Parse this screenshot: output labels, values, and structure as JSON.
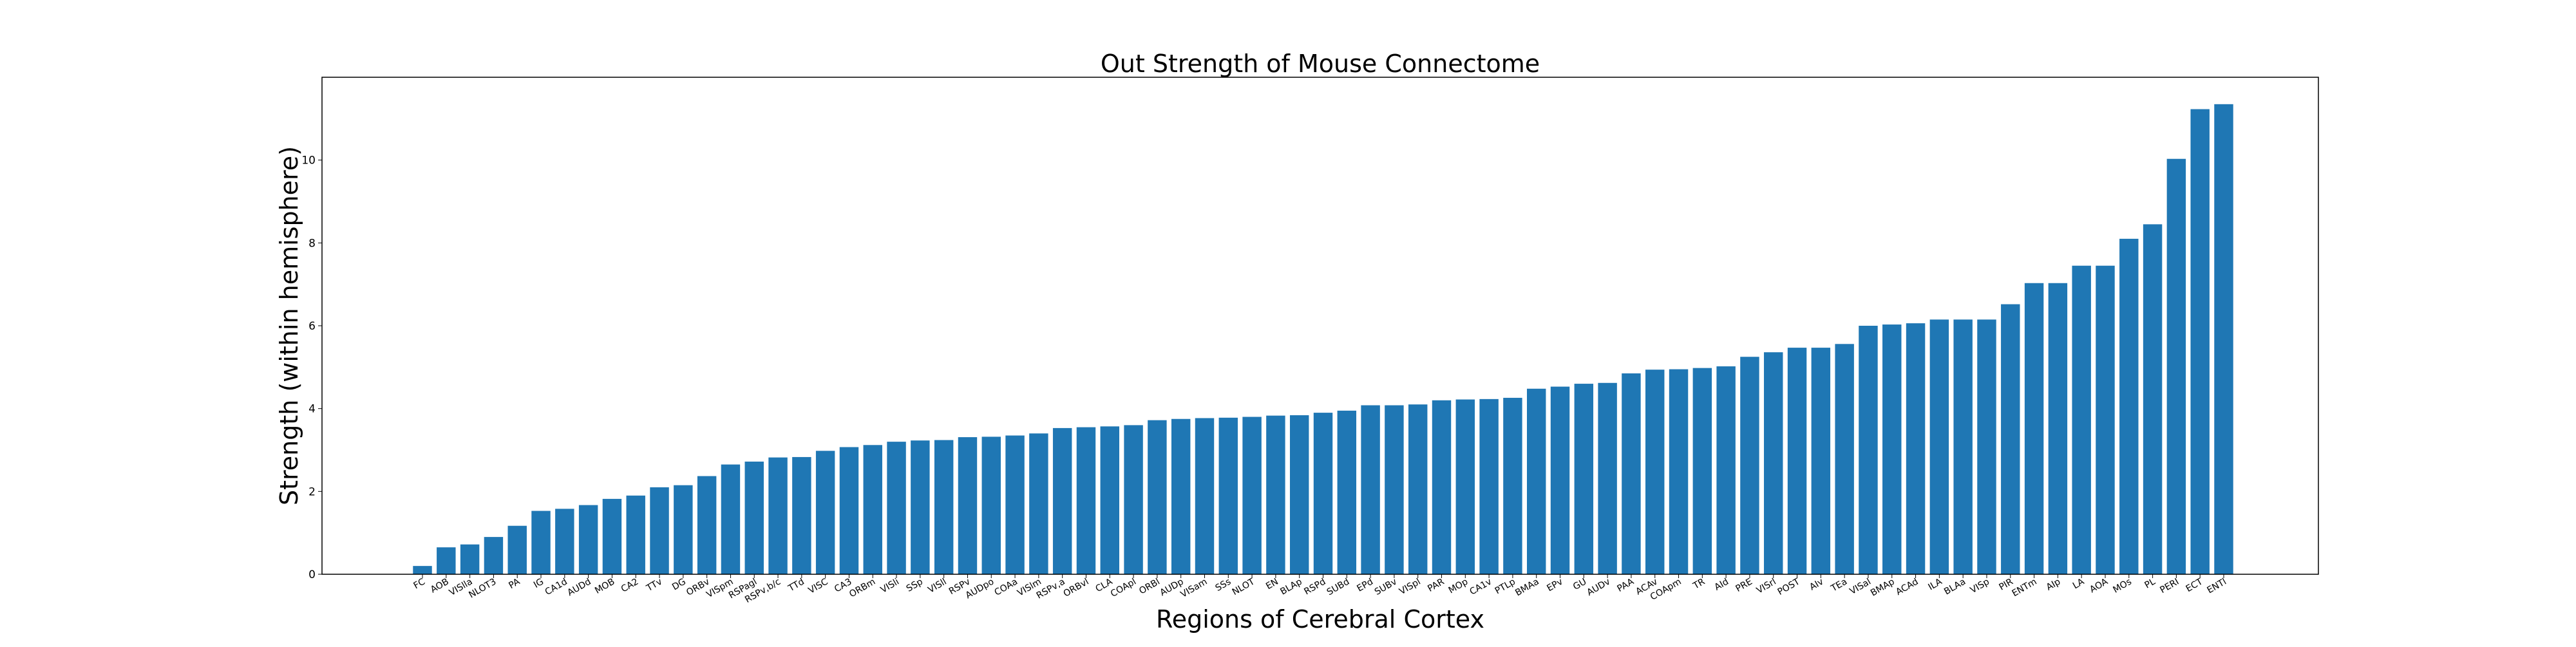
{
  "chart_data": {
    "type": "bar",
    "title": "Out Strength of Mouse Connectome",
    "xlabel": "Regions of Cerebral Cortex",
    "ylabel": "Strength (within hemisphere)",
    "ylim": [
      0,
      12
    ],
    "yticks": [
      0,
      2,
      4,
      6,
      8,
      10
    ],
    "grid": false,
    "bar_color": "#1f77b4",
    "categories": [
      "FC",
      "AOB",
      "VISlla",
      "NLOT3",
      "PA",
      "IG",
      "CA1d",
      "AUDd",
      "MOB",
      "CA2",
      "TTv",
      "DG",
      "ORBv",
      "VISpm",
      "RSPagl",
      "RSPv,b/c",
      "TTd",
      "VISC",
      "CA3",
      "ORBm",
      "VISli",
      "SSp",
      "VISll",
      "RSPv",
      "AUDpo",
      "COAa",
      "VISlm",
      "RSPv,a",
      "ORBvl",
      "CLA",
      "COApl",
      "ORBl",
      "AUDp",
      "VISam",
      "SSs",
      "NLOT",
      "EN",
      "BLAp",
      "RSPd",
      "SUBd",
      "EPd",
      "SUBv",
      "VISpl",
      "PAR",
      "MOp",
      "CA1v",
      "PTLp",
      "BMAa",
      "EPv",
      "GU",
      "AUDv",
      "PAA",
      "ACAv",
      "COApm",
      "TR",
      "AId",
      "PRE",
      "VISrl",
      "POST",
      "AIv",
      "TEa",
      "VISal",
      "BMAp",
      "ACAd",
      "ILA",
      "BLAa",
      "VISp",
      "PIR",
      "ENTm",
      "AIp",
      "LA",
      "AOA",
      "MOs",
      "PL",
      "PERI",
      "ECT",
      "ENTl"
    ],
    "values": [
      0.2,
      0.65,
      0.72,
      0.9,
      1.17,
      1.53,
      1.58,
      1.67,
      1.82,
      1.9,
      2.1,
      2.15,
      2.37,
      2.65,
      2.72,
      2.82,
      2.83,
      2.98,
      3.07,
      3.12,
      3.2,
      3.23,
      3.24,
      3.31,
      3.32,
      3.35,
      3.4,
      3.53,
      3.55,
      3.57,
      3.6,
      3.72,
      3.75,
      3.77,
      3.78,
      3.8,
      3.83,
      3.84,
      3.9,
      3.95,
      4.08,
      4.08,
      4.1,
      4.2,
      4.22,
      4.23,
      4.26,
      4.48,
      4.53,
      4.6,
      4.62,
      4.85,
      4.94,
      4.95,
      4.98,
      5.02,
      5.25,
      5.36,
      5.47,
      5.47,
      5.56,
      6.0,
      6.03,
      6.06,
      6.15,
      6.15,
      6.15,
      6.52,
      7.03,
      7.03,
      7.45,
      7.45,
      8.1,
      8.45,
      10.03,
      11.23,
      11.35
    ]
  }
}
